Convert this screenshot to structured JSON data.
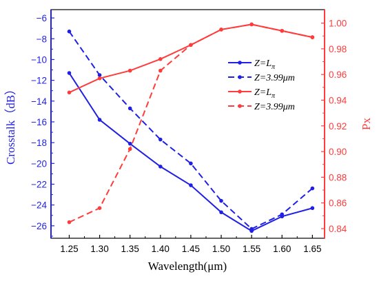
{
  "chart_data": {
    "type": "line",
    "xlabel": "Wavelength(μm)",
    "ylabel_left": "Crosstalk（dB）",
    "ylabel_right": "Px",
    "x": [
      1.25,
      1.3,
      1.35,
      1.4,
      1.45,
      1.5,
      1.55,
      1.6,
      1.65
    ],
    "x_ticks": [
      "1.25",
      "1.30",
      "1.35",
      "1.40",
      "1.45",
      "1.50",
      "1.55",
      "1.60",
      "1.65"
    ],
    "xlim": [
      1.22,
      1.67
    ],
    "ylim_left": [
      -27.2,
      -5.2
    ],
    "ylim_right": [
      0.8325,
      1.0105
    ],
    "y_ticks_left": [
      "-6",
      "-8",
      "-10",
      "-12",
      "-14",
      "-16",
      "-18",
      "-20",
      "-22",
      "-24",
      "-26"
    ],
    "y_ticks_right": [
      "0.84",
      "0.86",
      "0.88",
      "0.90",
      "0.92",
      "0.94",
      "0.96",
      "0.98",
      "1.00"
    ],
    "colors": {
      "left_axis": "#1f1fe6",
      "right_axis": "#ff3b3b"
    },
    "legend_position": "center-right",
    "series": [
      {
        "name": "Z=L_π",
        "axis": "left",
        "style": "solid",
        "color": "#1f1fe6",
        "values": [
          -11.3,
          -15.8,
          -18.1,
          -20.3,
          -22.1,
          -24.7,
          -26.5,
          -25.1,
          -24.3
        ]
      },
      {
        "name": "Z=3.99μm",
        "axis": "left",
        "style": "dashed",
        "color": "#1f1fe6",
        "values": [
          -7.3,
          -11.5,
          -14.7,
          -17.7,
          -20.0,
          -23.6,
          -26.3,
          -24.9,
          -22.4
        ]
      },
      {
        "name": "Z=L_π",
        "axis": "right",
        "style": "solid",
        "color": "#ff3b3b",
        "values": [
          0.946,
          0.957,
          0.963,
          0.972,
          0.983,
          0.995,
          0.999,
          0.994,
          0.989
        ]
      },
      {
        "name": "Z=3.99μm",
        "axis": "right",
        "style": "dashed",
        "color": "#ff3b3b",
        "values": [
          0.845,
          0.856,
          0.902,
          0.963,
          0.983,
          0.995,
          0.999,
          0.994,
          0.989
        ]
      }
    ]
  },
  "legend": [
    {
      "prefix": "Z=",
      "main": "L",
      "sub": "π"
    },
    {
      "prefix": "Z=",
      "main": "3.99μm",
      "sub": ""
    },
    {
      "prefix": "Z=",
      "main": "L",
      "sub": "π"
    },
    {
      "prefix": "Z=",
      "main": "3.99μm",
      "sub": ""
    }
  ]
}
